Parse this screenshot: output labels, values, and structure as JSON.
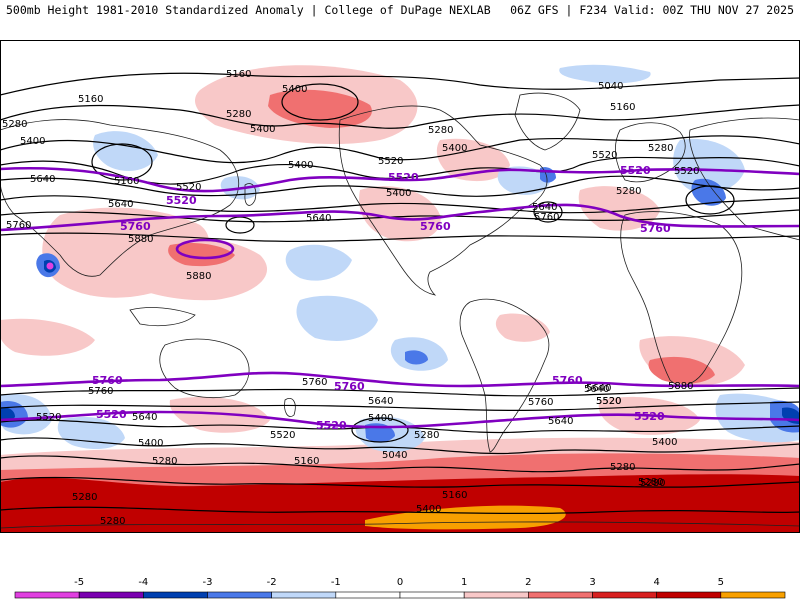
{
  "header": {
    "title": "500mb Height 1981-2010 Standardized Anomaly | College of DuPage NEXLAB",
    "run_info": "06Z GFS | F234 Valid: 00Z THU NOV 27 2025"
  },
  "colors": {
    "neg5": "#e040e0",
    "neg4": "#7a00b0",
    "neg3": "#0040b0",
    "neg2": "#4a78e8",
    "neg1": "#c0d8f8",
    "zero": "#ffffff",
    "pos1": "#f8c8c8",
    "pos2": "#f07070",
    "pos3": "#d82020",
    "pos4": "#c00000",
    "pos5": "#f8a000",
    "contour": "#000000",
    "highlight": "#8000c0"
  },
  "contour_labels": {
    "black": [
      "5160",
      "5400",
      "5040",
      "5160",
      "5280",
      "5400",
      "5280",
      "5160",
      "5400",
      "5400",
      "5280",
      "5520",
      "5520",
      "5280",
      "5640",
      "5400",
      "5520",
      "5160",
      "5640",
      "5760",
      "5640",
      "5520",
      "5280",
      "5400",
      "5640",
      "5760",
      "5880",
      "5880",
      "5880",
      "5760",
      "5640",
      "5640",
      "5760",
      "5760",
      "5640",
      "5520",
      "5640",
      "5520",
      "5520",
      "5400",
      "5280",
      "5160",
      "5040",
      "5400",
      "5280",
      "5160",
      "5280",
      "5280",
      "5400",
      "5280",
      "5640",
      "5280",
      "5520",
      "5400",
      "5280"
    ],
    "purple": [
      "5520",
      "5520",
      "5520",
      "5760",
      "5760",
      "5760",
      "5760",
      "5760",
      "5760",
      "5520",
      "5520",
      "5520"
    ]
  },
  "color_scale": {
    "ticks": [
      "-5",
      "-4",
      "-3",
      "-2",
      "-1",
      "0",
      "1",
      "2",
      "3",
      "4",
      "5"
    ]
  }
}
